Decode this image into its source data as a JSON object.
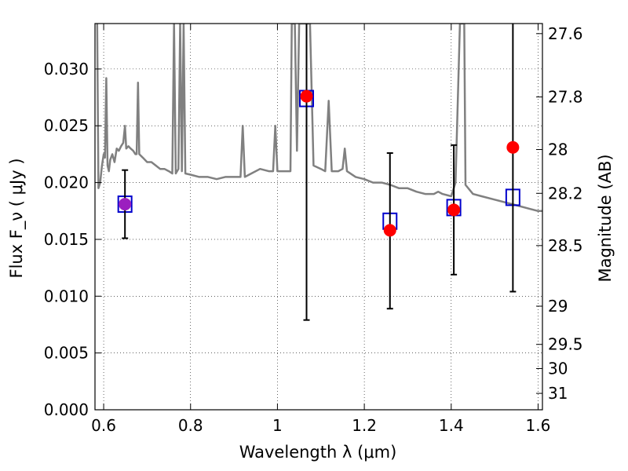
{
  "chart_data": {
    "type": "scatter",
    "xlabel": "Wavelength  λ (μm)",
    "ylabel_left": "Flux  F_ν  ( μJy )",
    "ylabel_right": "Magnitude (AB)",
    "xlim": [
      0.58,
      1.61
    ],
    "ylim": [
      0.0,
      0.034
    ],
    "grid": true,
    "x_ticks": [
      {
        "value": 0.6,
        "label": "0.6"
      },
      {
        "value": 0.8,
        "label": "0.8"
      },
      {
        "value": 1.0,
        "label": "1"
      },
      {
        "value": 1.2,
        "label": "1.2"
      },
      {
        "value": 1.4,
        "label": "1.4"
      },
      {
        "value": 1.6,
        "label": "1.6"
      }
    ],
    "y_ticks": [
      {
        "value": 0.0,
        "label": "0.000"
      },
      {
        "value": 0.005,
        "label": "0.005"
      },
      {
        "value": 0.01,
        "label": "0.010"
      },
      {
        "value": 0.015,
        "label": "0.015"
      },
      {
        "value": 0.02,
        "label": "0.020"
      },
      {
        "value": 0.025,
        "label": "0.025"
      },
      {
        "value": 0.03,
        "label": "0.030"
      }
    ],
    "right_ticks": [
      {
        "mag": 27.6,
        "label": "27.6"
      },
      {
        "mag": 27.8,
        "label": "27.8"
      },
      {
        "mag": 28.0,
        "label": "28"
      },
      {
        "mag": 28.2,
        "label": "28.2"
      },
      {
        "mag": 28.5,
        "label": "28.5"
      },
      {
        "mag": 29.0,
        "label": "29"
      },
      {
        "mag": 29.5,
        "label": "29.5"
      },
      {
        "mag": 30.0,
        "label": "30"
      },
      {
        "mag": 31.0,
        "label": "31"
      }
    ],
    "model_spectrum": {
      "color": "#808080",
      "points": [
        [
          0.585,
          0.034
        ],
        [
          0.588,
          0.0195
        ],
        [
          0.592,
          0.02
        ],
        [
          0.596,
          0.0215
        ],
        [
          0.6,
          0.0225
        ],
        [
          0.603,
          0.0222
        ],
        [
          0.606,
          0.0292
        ],
        [
          0.609,
          0.0215
        ],
        [
          0.612,
          0.021
        ],
        [
          0.615,
          0.022
        ],
        [
          0.62,
          0.0225
        ],
        [
          0.625,
          0.0218
        ],
        [
          0.63,
          0.023
        ],
        [
          0.635,
          0.0228
        ],
        [
          0.64,
          0.0232
        ],
        [
          0.645,
          0.0235
        ],
        [
          0.649,
          0.025
        ],
        [
          0.652,
          0.023
        ],
        [
          0.657,
          0.0232
        ],
        [
          0.662,
          0.023
        ],
        [
          0.668,
          0.0228
        ],
        [
          0.673,
          0.0225
        ],
        [
          0.676,
          0.0225
        ],
        [
          0.679,
          0.0288
        ],
        [
          0.682,
          0.0225
        ],
        [
          0.69,
          0.0222
        ],
        [
          0.7,
          0.0218
        ],
        [
          0.71,
          0.0218
        ],
        [
          0.72,
          0.0215
        ],
        [
          0.73,
          0.0212
        ],
        [
          0.74,
          0.0212
        ],
        [
          0.75,
          0.021
        ],
        [
          0.758,
          0.0208
        ],
        [
          0.762,
          0.034
        ],
        [
          0.766,
          0.0208
        ],
        [
          0.772,
          0.0212
        ],
        [
          0.776,
          0.034
        ],
        [
          0.78,
          0.021
        ],
        [
          0.784,
          0.034
        ],
        [
          0.788,
          0.0208
        ],
        [
          0.8,
          0.0207
        ],
        [
          0.82,
          0.0205
        ],
        [
          0.84,
          0.0205
        ],
        [
          0.86,
          0.0203
        ],
        [
          0.88,
          0.0205
        ],
        [
          0.9,
          0.0205
        ],
        [
          0.915,
          0.0205
        ],
        [
          0.92,
          0.025
        ],
        [
          0.925,
          0.0205
        ],
        [
          0.94,
          0.0208
        ],
        [
          0.96,
          0.0212
        ],
        [
          0.98,
          0.021
        ],
        [
          0.99,
          0.021
        ],
        [
          0.995,
          0.025
        ],
        [
          1.0,
          0.021
        ],
        [
          1.02,
          0.021
        ],
        [
          1.03,
          0.021
        ],
        [
          1.033,
          0.034
        ],
        [
          1.04,
          0.034
        ],
        [
          1.045,
          0.0228
        ],
        [
          1.05,
          0.034
        ],
        [
          1.06,
          0.034
        ],
        [
          1.075,
          0.034
        ],
        [
          1.083,
          0.0215
        ],
        [
          1.1,
          0.0212
        ],
        [
          1.11,
          0.021
        ],
        [
          1.118,
          0.0272
        ],
        [
          1.125,
          0.021
        ],
        [
          1.14,
          0.021
        ],
        [
          1.15,
          0.0212
        ],
        [
          1.155,
          0.023
        ],
        [
          1.16,
          0.021
        ],
        [
          1.18,
          0.0205
        ],
        [
          1.2,
          0.0203
        ],
        [
          1.22,
          0.02
        ],
        [
          1.24,
          0.02
        ],
        [
          1.26,
          0.0198
        ],
        [
          1.28,
          0.0195
        ],
        [
          1.3,
          0.0195
        ],
        [
          1.32,
          0.0192
        ],
        [
          1.34,
          0.019
        ],
        [
          1.36,
          0.019
        ],
        [
          1.37,
          0.0192
        ],
        [
          1.38,
          0.019
        ],
        [
          1.4,
          0.0188
        ],
        [
          1.41,
          0.02
        ],
        [
          1.42,
          0.034
        ],
        [
          1.43,
          0.034
        ],
        [
          1.433,
          0.0198
        ],
        [
          1.45,
          0.019
        ],
        [
          1.47,
          0.0188
        ],
        [
          1.5,
          0.0185
        ],
        [
          1.52,
          0.0183
        ],
        [
          1.55,
          0.018
        ],
        [
          1.58,
          0.0177
        ],
        [
          1.6,
          0.0175
        ],
        [
          1.61,
          0.0175
        ]
      ]
    },
    "model_photometry": {
      "marker": "open-square",
      "color": "#0000cc",
      "points": [
        {
          "x": 0.649,
          "y": 0.0181
        },
        {
          "x": 1.067,
          "y": 0.0274
        },
        {
          "x": 1.259,
          "y": 0.0166
        },
        {
          "x": 1.406,
          "y": 0.0178
        },
        {
          "x": 1.542,
          "y": 0.0187
        }
      ]
    },
    "observed": {
      "marker": "filled-circle",
      "color": "#ff0000",
      "errorbar_color": "#000000",
      "points": [
        {
          "x": 0.649,
          "y": 0.0181,
          "ylo": 0.0151,
          "yhi": 0.0211,
          "color": "#9b1fbf"
        },
        {
          "x": 1.067,
          "y": 0.0276,
          "ylo": 0.0079,
          "yhi": 0.034
        },
        {
          "x": 1.259,
          "y": 0.0158,
          "ylo": 0.0089,
          "yhi": 0.0226
        },
        {
          "x": 1.406,
          "y": 0.0176,
          "ylo": 0.0119,
          "yhi": 0.0233
        },
        {
          "x": 1.542,
          "y": 0.0231,
          "ylo": 0.0104,
          "yhi": 0.034
        }
      ]
    }
  }
}
